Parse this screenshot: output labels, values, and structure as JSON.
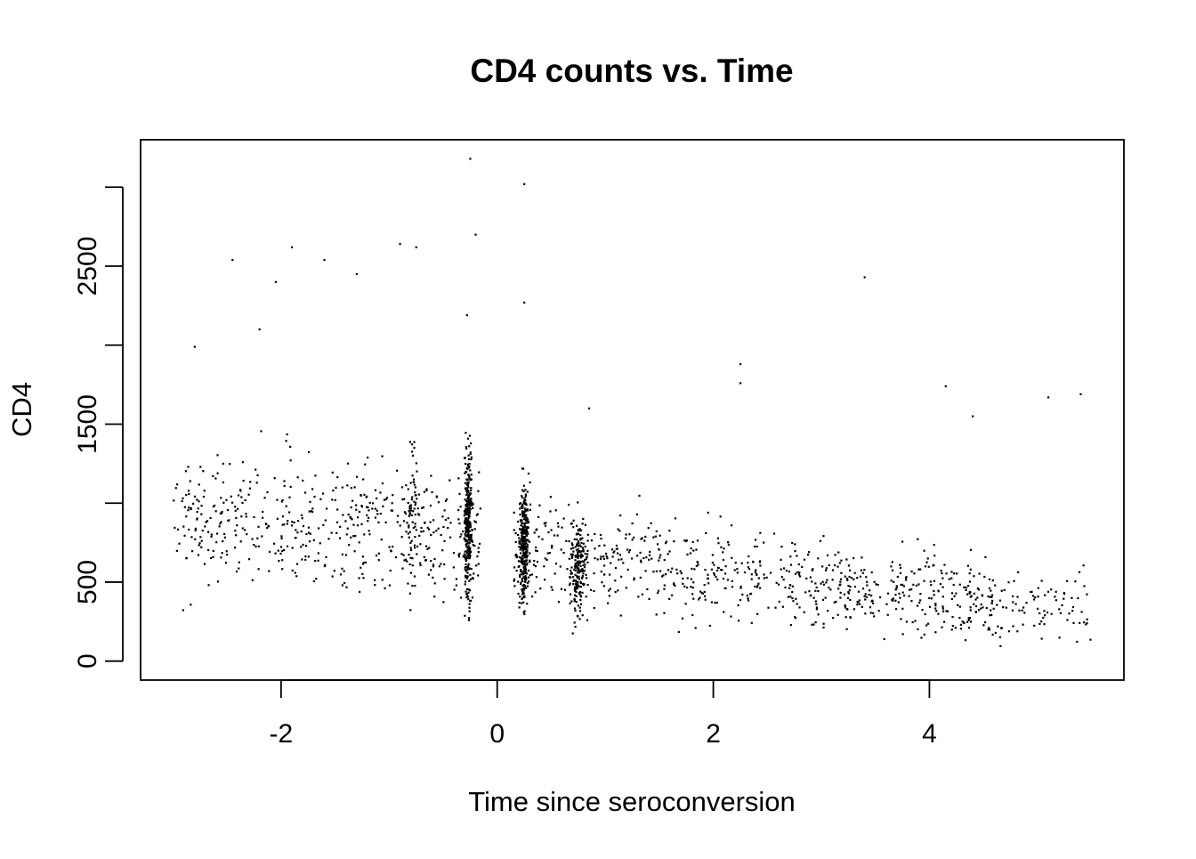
{
  "chart_data": {
    "type": "scatter",
    "title": "CD4 counts vs. Time",
    "xlabel": "Time since seroconversion",
    "ylabel": "CD4",
    "xlim": [
      -3.3,
      5.8
    ],
    "ylim": [
      -120,
      3300
    ],
    "xticks": [
      -2,
      0,
      2,
      4
    ],
    "xtick_labels": [
      "-2",
      "0",
      "2",
      "4"
    ],
    "yticks": [
      0,
      500,
      1000,
      1500,
      2000,
      2500,
      3000
    ],
    "ytick_labels": [
      "0",
      "500",
      "",
      "1500",
      "",
      "2500",
      ""
    ],
    "grid": false,
    "legend": "none",
    "marker_color": "#000000",
    "notable_points": {
      "x": [
        -0.25,
        0.25,
        -0.2,
        0.25,
        -0.28,
        3.4,
        2.25,
        -1.9,
        -0.9,
        -0.75,
        -2.45,
        -1.6,
        -2.05,
        -1.3,
        -2.8,
        -2.2,
        5.4,
        5.1,
        4.15,
        4.4,
        2.25,
        0.85
      ],
      "y": [
        3180,
        3020,
        2700,
        2270,
        2190,
        2430,
        1880,
        2620,
        2640,
        2620,
        2540,
        2540,
        2400,
        2450,
        1990,
        2100,
        1690,
        1670,
        1740,
        1550,
        1760,
        1600
      ]
    }
  }
}
